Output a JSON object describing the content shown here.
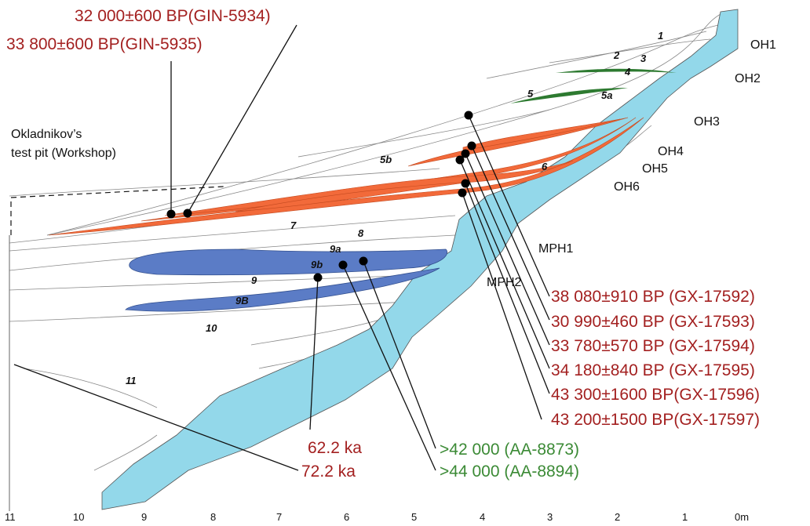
{
  "dates_top": [
    "32 000±600  BP(GIN-5934)",
    "33 800±600 BP(GIN-5935)"
  ],
  "test_pit": [
    "Okladnikov’s",
    "test pit (Workshop)"
  ],
  "layers": [
    "1",
    "2",
    "3",
    "4",
    "5",
    "5a",
    "5b",
    "6",
    "7",
    "8",
    "9a",
    "9b",
    "9",
    "9B",
    "10",
    "11"
  ],
  "horizons": [
    "OH1",
    "OH2",
    "OH3",
    "OH4",
    "OH5",
    "OH6"
  ],
  "mph": [
    "MPH1",
    "MPH2"
  ],
  "dates_right": [
    "38 080±910 BP (GX-17592)",
    "30 990±460 BP (GX-17593)",
    "33 780±570 BP (GX-17594)",
    "34 180±840 BP (GX-17595)",
    "43 300±1600 BP(GX-17596)",
    "43 200±1500 BP(GX-17597)"
  ],
  "dates_ka": [
    "62.2 ka",
    "72.2 ka"
  ],
  "dates_ams": [
    ">42 000 (AA-8873)",
    ">44 000 (AA-8894)"
  ],
  "scale": [
    "11",
    "10",
    "9",
    "8",
    "7",
    "6",
    "5",
    "4",
    "3",
    "2",
    "1",
    "0m"
  ]
}
